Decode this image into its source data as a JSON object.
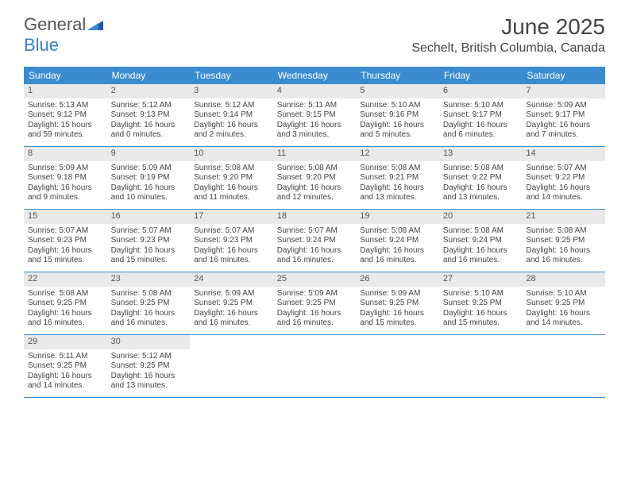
{
  "brand": {
    "part1": "General",
    "part2": "Blue"
  },
  "title": "June 2025",
  "location": "Sechelt, British Columbia, Canada",
  "colors": {
    "header_bg": "#3a8bd0",
    "header_text": "#ffffff",
    "day_header_bg": "#e9e9e9",
    "border": "#3a8bd0",
    "text": "#444444",
    "brand_gray": "#555555",
    "brand_blue": "#3a7fc4"
  },
  "weekdays": [
    "Sunday",
    "Monday",
    "Tuesday",
    "Wednesday",
    "Thursday",
    "Friday",
    "Saturday"
  ],
  "weeks": [
    [
      {
        "n": "1",
        "sr": "Sunrise: 5:13 AM",
        "ss": "Sunset: 9:12 PM",
        "d1": "Daylight: 15 hours",
        "d2": "and 59 minutes."
      },
      {
        "n": "2",
        "sr": "Sunrise: 5:12 AM",
        "ss": "Sunset: 9:13 PM",
        "d1": "Daylight: 16 hours",
        "d2": "and 0 minutes."
      },
      {
        "n": "3",
        "sr": "Sunrise: 5:12 AM",
        "ss": "Sunset: 9:14 PM",
        "d1": "Daylight: 16 hours",
        "d2": "and 2 minutes."
      },
      {
        "n": "4",
        "sr": "Sunrise: 5:11 AM",
        "ss": "Sunset: 9:15 PM",
        "d1": "Daylight: 16 hours",
        "d2": "and 3 minutes."
      },
      {
        "n": "5",
        "sr": "Sunrise: 5:10 AM",
        "ss": "Sunset: 9:16 PM",
        "d1": "Daylight: 16 hours",
        "d2": "and 5 minutes."
      },
      {
        "n": "6",
        "sr": "Sunrise: 5:10 AM",
        "ss": "Sunset: 9:17 PM",
        "d1": "Daylight: 16 hours",
        "d2": "and 6 minutes."
      },
      {
        "n": "7",
        "sr": "Sunrise: 5:09 AM",
        "ss": "Sunset: 9:17 PM",
        "d1": "Daylight: 16 hours",
        "d2": "and 7 minutes."
      }
    ],
    [
      {
        "n": "8",
        "sr": "Sunrise: 5:09 AM",
        "ss": "Sunset: 9:18 PM",
        "d1": "Daylight: 16 hours",
        "d2": "and 9 minutes."
      },
      {
        "n": "9",
        "sr": "Sunrise: 5:09 AM",
        "ss": "Sunset: 9:19 PM",
        "d1": "Daylight: 16 hours",
        "d2": "and 10 minutes."
      },
      {
        "n": "10",
        "sr": "Sunrise: 5:08 AM",
        "ss": "Sunset: 9:20 PM",
        "d1": "Daylight: 16 hours",
        "d2": "and 11 minutes."
      },
      {
        "n": "11",
        "sr": "Sunrise: 5:08 AM",
        "ss": "Sunset: 9:20 PM",
        "d1": "Daylight: 16 hours",
        "d2": "and 12 minutes."
      },
      {
        "n": "12",
        "sr": "Sunrise: 5:08 AM",
        "ss": "Sunset: 9:21 PM",
        "d1": "Daylight: 16 hours",
        "d2": "and 13 minutes."
      },
      {
        "n": "13",
        "sr": "Sunrise: 5:08 AM",
        "ss": "Sunset: 9:22 PM",
        "d1": "Daylight: 16 hours",
        "d2": "and 13 minutes."
      },
      {
        "n": "14",
        "sr": "Sunrise: 5:07 AM",
        "ss": "Sunset: 9:22 PM",
        "d1": "Daylight: 16 hours",
        "d2": "and 14 minutes."
      }
    ],
    [
      {
        "n": "15",
        "sr": "Sunrise: 5:07 AM",
        "ss": "Sunset: 9:23 PM",
        "d1": "Daylight: 16 hours",
        "d2": "and 15 minutes."
      },
      {
        "n": "16",
        "sr": "Sunrise: 5:07 AM",
        "ss": "Sunset: 9:23 PM",
        "d1": "Daylight: 16 hours",
        "d2": "and 15 minutes."
      },
      {
        "n": "17",
        "sr": "Sunrise: 5:07 AM",
        "ss": "Sunset: 9:23 PM",
        "d1": "Daylight: 16 hours",
        "d2": "and 16 minutes."
      },
      {
        "n": "18",
        "sr": "Sunrise: 5:07 AM",
        "ss": "Sunset: 9:24 PM",
        "d1": "Daylight: 16 hours",
        "d2": "and 16 minutes."
      },
      {
        "n": "19",
        "sr": "Sunrise: 5:08 AM",
        "ss": "Sunset: 9:24 PM",
        "d1": "Daylight: 16 hours",
        "d2": "and 16 minutes."
      },
      {
        "n": "20",
        "sr": "Sunrise: 5:08 AM",
        "ss": "Sunset: 9:24 PM",
        "d1": "Daylight: 16 hours",
        "d2": "and 16 minutes."
      },
      {
        "n": "21",
        "sr": "Sunrise: 5:08 AM",
        "ss": "Sunset: 9:25 PM",
        "d1": "Daylight: 16 hours",
        "d2": "and 16 minutes."
      }
    ],
    [
      {
        "n": "22",
        "sr": "Sunrise: 5:08 AM",
        "ss": "Sunset: 9:25 PM",
        "d1": "Daylight: 16 hours",
        "d2": "and 16 minutes."
      },
      {
        "n": "23",
        "sr": "Sunrise: 5:08 AM",
        "ss": "Sunset: 9:25 PM",
        "d1": "Daylight: 16 hours",
        "d2": "and 16 minutes."
      },
      {
        "n": "24",
        "sr": "Sunrise: 5:09 AM",
        "ss": "Sunset: 9:25 PM",
        "d1": "Daylight: 16 hours",
        "d2": "and 16 minutes."
      },
      {
        "n": "25",
        "sr": "Sunrise: 5:09 AM",
        "ss": "Sunset: 9:25 PM",
        "d1": "Daylight: 16 hours",
        "d2": "and 16 minutes."
      },
      {
        "n": "26",
        "sr": "Sunrise: 5:09 AM",
        "ss": "Sunset: 9:25 PM",
        "d1": "Daylight: 16 hours",
        "d2": "and 15 minutes."
      },
      {
        "n": "27",
        "sr": "Sunrise: 5:10 AM",
        "ss": "Sunset: 9:25 PM",
        "d1": "Daylight: 16 hours",
        "d2": "and 15 minutes."
      },
      {
        "n": "28",
        "sr": "Sunrise: 5:10 AM",
        "ss": "Sunset: 9:25 PM",
        "d1": "Daylight: 16 hours",
        "d2": "and 14 minutes."
      }
    ],
    [
      {
        "n": "29",
        "sr": "Sunrise: 5:11 AM",
        "ss": "Sunset: 9:25 PM",
        "d1": "Daylight: 16 hours",
        "d2": "and 14 minutes."
      },
      {
        "n": "30",
        "sr": "Sunrise: 5:12 AM",
        "ss": "Sunset: 9:25 PM",
        "d1": "Daylight: 16 hours",
        "d2": "and 13 minutes."
      },
      null,
      null,
      null,
      null,
      null
    ]
  ]
}
